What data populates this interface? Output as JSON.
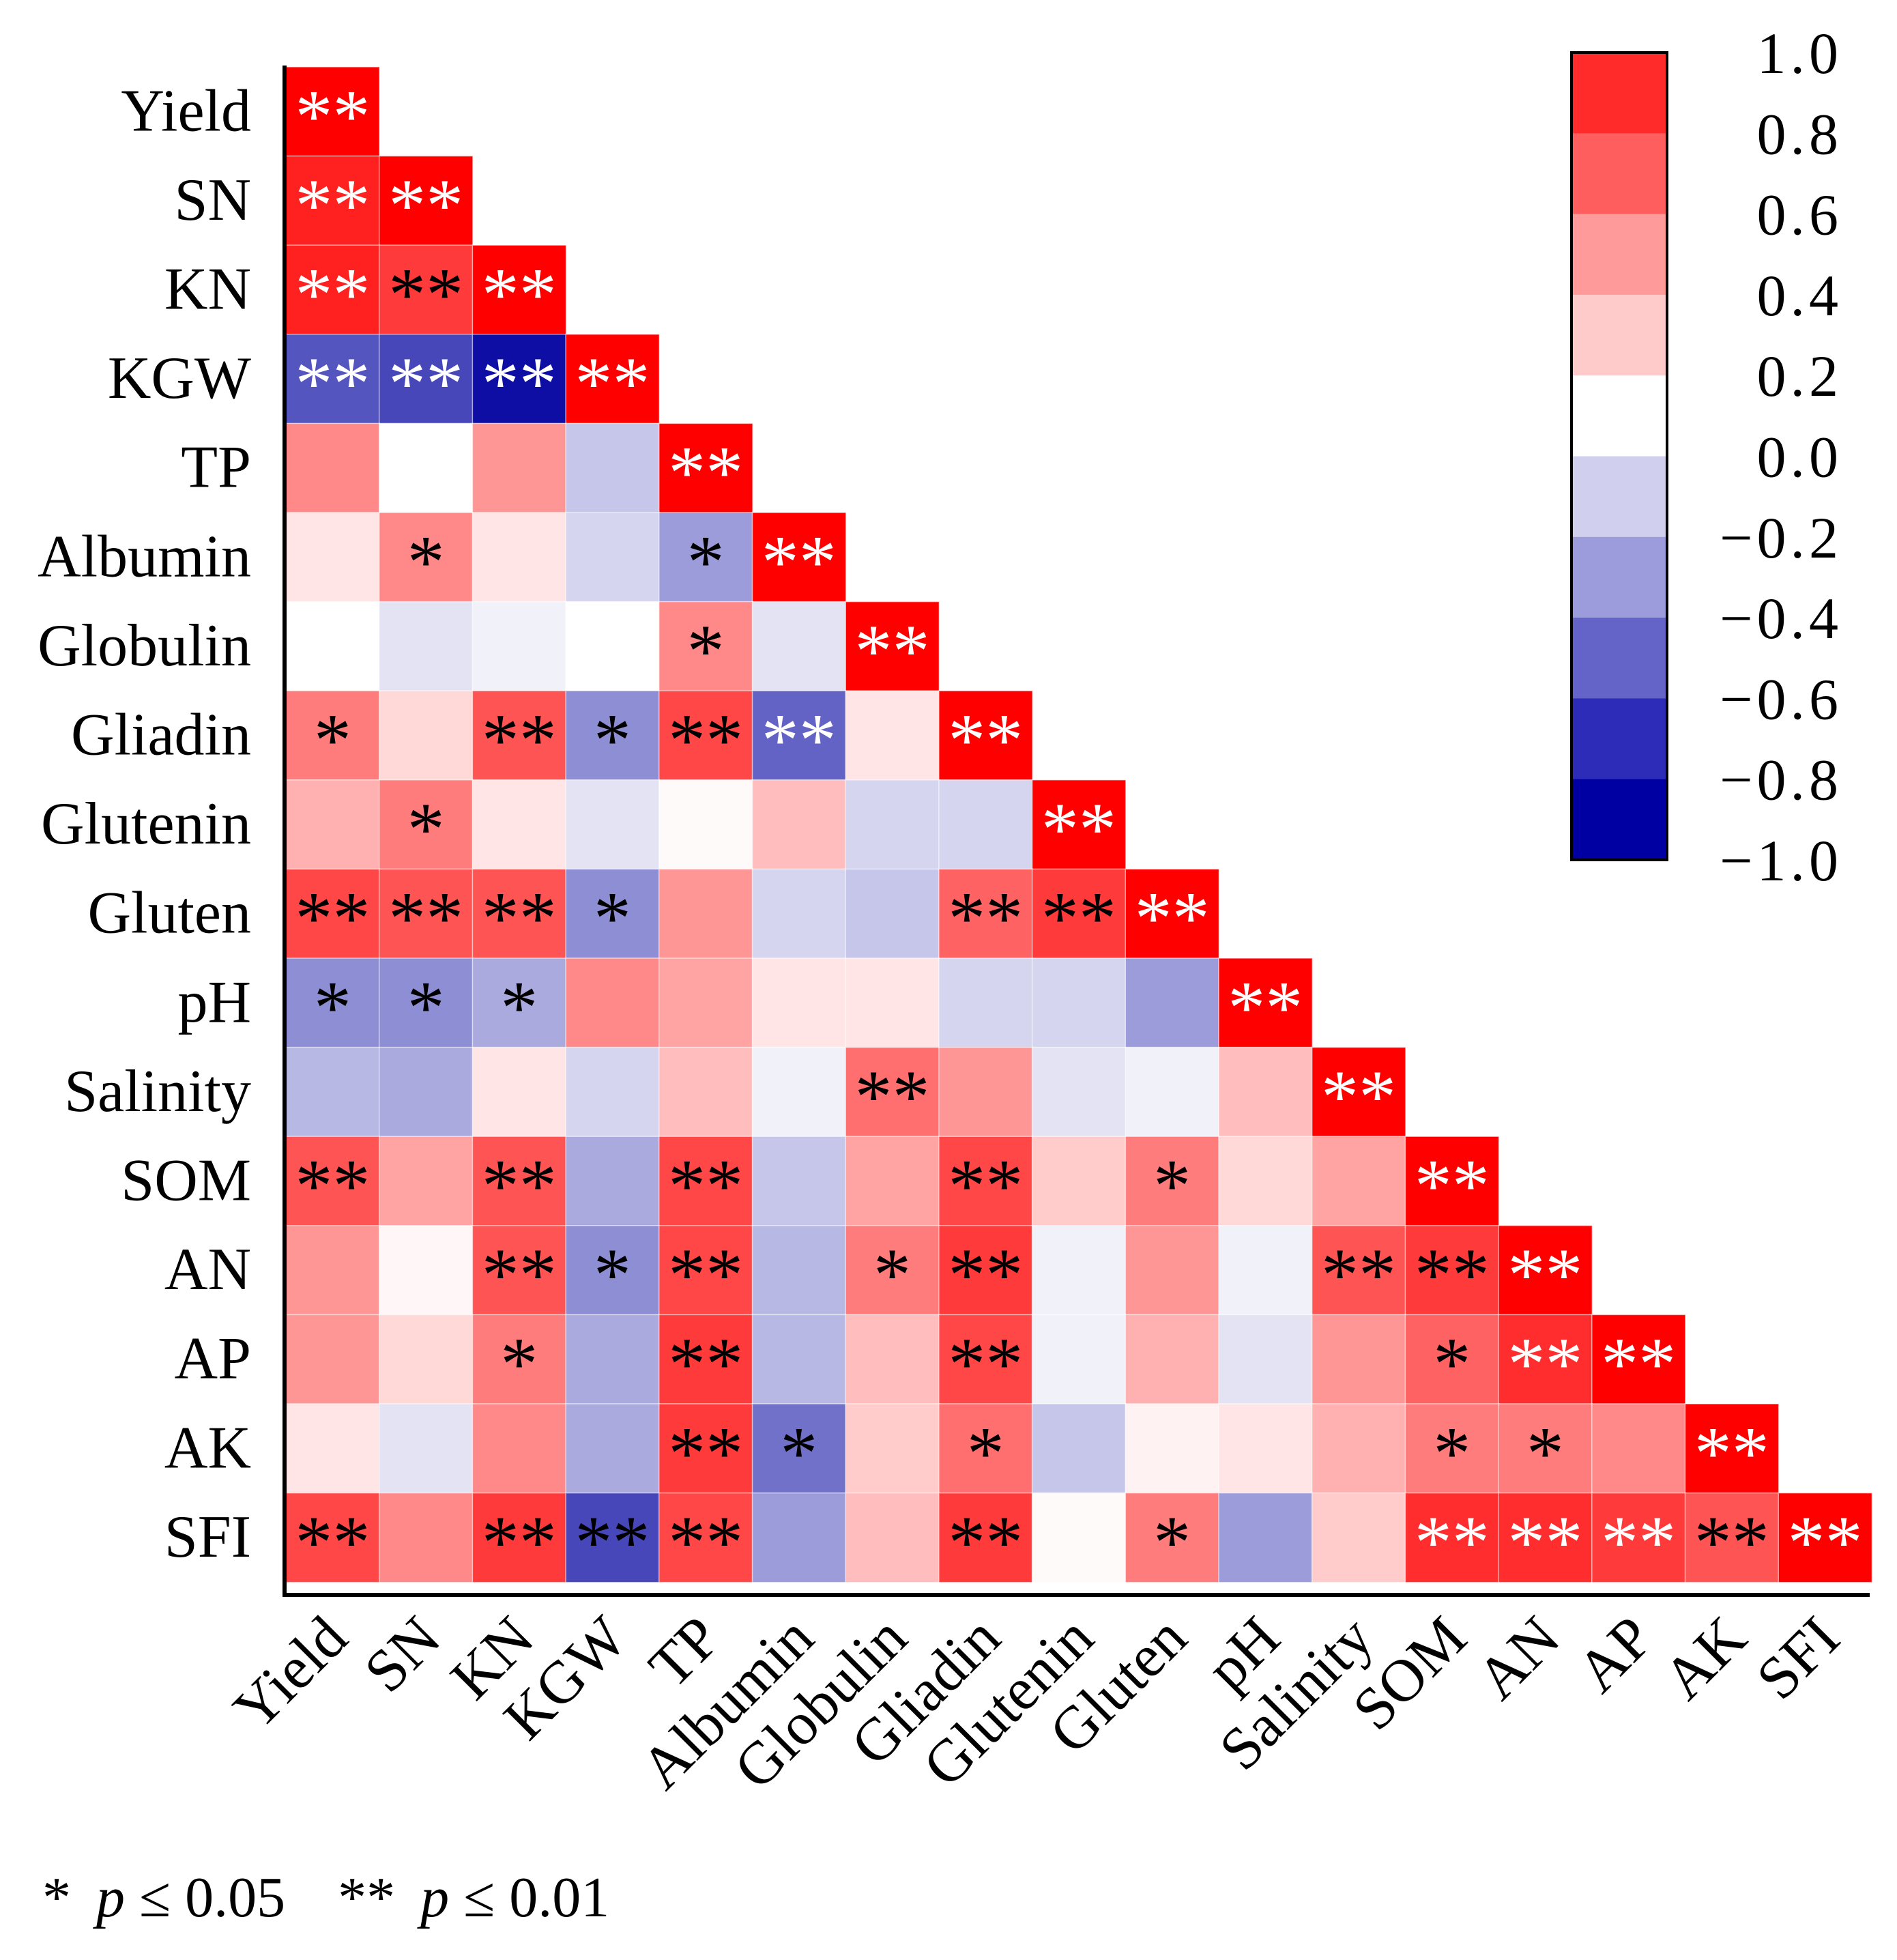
{
  "chart_data": {
    "type": "heatmap",
    "variables": [
      "Yield",
      "SN",
      "KN",
      "KGW",
      "TP",
      "Albumin",
      "Globulin",
      "Gliadin",
      "Glutenin",
      "Gluten",
      "pH",
      "Salinity",
      "SOM",
      "AN",
      "AP",
      "AK",
      "SFI"
    ],
    "matrix": [
      [
        1.0
      ],
      [
        0.9,
        1.0
      ],
      [
        0.9,
        0.75,
        1.0
      ],
      [
        -0.6,
        -0.65,
        -0.85,
        1.0
      ],
      [
        0.45,
        0.0,
        0.4,
        -0.2,
        1.0
      ],
      [
        0.1,
        0.45,
        0.1,
        -0.15,
        -0.35,
        1.0
      ],
      [
        0.0,
        -0.1,
        -0.05,
        0.0,
        0.45,
        -0.1,
        1.0
      ],
      [
        0.5,
        0.15,
        0.65,
        -0.4,
        0.7,
        -0.55,
        0.1,
        1.0
      ],
      [
        0.3,
        0.5,
        0.1,
        -0.1,
        0.02,
        0.25,
        -0.15,
        -0.15,
        1.0
      ],
      [
        0.7,
        0.65,
        0.65,
        -0.4,
        0.4,
        -0.15,
        -0.2,
        0.6,
        0.75,
        1.0
      ],
      [
        -0.4,
        -0.4,
        -0.3,
        0.45,
        0.35,
        0.1,
        0.1,
        -0.15,
        -0.15,
        -0.35,
        1.0
      ],
      [
        -0.25,
        -0.3,
        0.1,
        -0.15,
        0.25,
        -0.05,
        0.55,
        0.4,
        -0.1,
        -0.05,
        0.25,
        1.0
      ],
      [
        0.65,
        0.35,
        0.65,
        -0.3,
        0.7,
        -0.2,
        0.35,
        0.7,
        0.2,
        0.5,
        0.15,
        0.35,
        1.0
      ],
      [
        0.4,
        0.03,
        0.65,
        -0.4,
        0.7,
        -0.25,
        0.5,
        0.75,
        -0.05,
        0.4,
        -0.05,
        0.65,
        0.75,
        1.0
      ],
      [
        0.4,
        0.15,
        0.5,
        -0.3,
        0.75,
        -0.25,
        0.25,
        0.7,
        -0.05,
        0.3,
        -0.1,
        0.4,
        0.6,
        0.8,
        1.0
      ],
      [
        0.1,
        -0.1,
        0.45,
        -0.3,
        0.75,
        -0.5,
        0.2,
        0.55,
        -0.2,
        0.05,
        0.1,
        0.3,
        0.5,
        0.5,
        0.45,
        1.0
      ],
      [
        0.7,
        0.45,
        0.75,
        -0.65,
        0.7,
        -0.35,
        0.25,
        0.75,
        0.02,
        0.5,
        -0.35,
        0.2,
        0.8,
        0.8,
        0.75,
        0.65,
        1.0
      ]
    ],
    "significance": [
      [
        "**"
      ],
      [
        "**",
        "**"
      ],
      [
        "**",
        "**",
        "**"
      ],
      [
        "**",
        "**",
        "**",
        "**"
      ],
      [
        "",
        "",
        "",
        "",
        "**"
      ],
      [
        "",
        "*",
        "",
        "",
        "*",
        "**"
      ],
      [
        "",
        "",
        "",
        "",
        "*",
        "",
        "**"
      ],
      [
        "*",
        "",
        "**",
        "*",
        "**",
        "**",
        "",
        "**"
      ],
      [
        "",
        "*",
        "",
        "",
        "",
        "",
        "",
        "",
        "**"
      ],
      [
        "**",
        "**",
        "**",
        "*",
        "",
        "",
        "",
        "**",
        "**",
        "**"
      ],
      [
        "*",
        "*",
        "*",
        "",
        "",
        "",
        "",
        "",
        "",
        "",
        "**"
      ],
      [
        "",
        "",
        "",
        "",
        "",
        "",
        "**",
        "",
        "",
        "",
        "",
        "**"
      ],
      [
        "**",
        "",
        "**",
        "",
        "**",
        "",
        "",
        "**",
        "",
        "*",
        "",
        "",
        "**"
      ],
      [
        "",
        "",
        "**",
        "*",
        "**",
        "",
        "*",
        "**",
        "",
        "",
        "",
        "**",
        "**",
        "**"
      ],
      [
        "",
        "",
        "*",
        "",
        "**",
        "",
        "",
        "**",
        "",
        "",
        "",
        "",
        "*",
        "**",
        "**"
      ],
      [
        "",
        "",
        "",
        "",
        "**",
        "*",
        "",
        "*",
        "",
        "",
        "",
        "",
        "*",
        "*",
        "",
        "**"
      ],
      [
        "**",
        "",
        "**",
        "**",
        "**",
        "",
        "",
        "**",
        "",
        "*",
        "",
        "",
        "**",
        "**",
        "**",
        "**",
        "**"
      ]
    ],
    "star_colors": [
      [
        "w"
      ],
      [
        "w",
        "w"
      ],
      [
        "w",
        "k",
        "w"
      ],
      [
        "w",
        "w",
        "w",
        "w"
      ],
      [
        "",
        "",
        "",
        "",
        "w"
      ],
      [
        "",
        "k",
        "",
        "",
        "k",
        "w"
      ],
      [
        "",
        "",
        "",
        "",
        "k",
        "",
        "w"
      ],
      [
        "k",
        "",
        "k",
        "k",
        "k",
        "w",
        "",
        "w"
      ],
      [
        "",
        "k",
        "",
        "",
        "",
        "",
        "",
        "",
        "w"
      ],
      [
        "k",
        "k",
        "k",
        "k",
        "",
        "",
        "",
        "k",
        "k",
        "w"
      ],
      [
        "k",
        "k",
        "k",
        "",
        "",
        "",
        "",
        "",
        "",
        "",
        "w"
      ],
      [
        "",
        "",
        "",
        "",
        "",
        "",
        "k",
        "",
        "",
        "",
        "",
        "w"
      ],
      [
        "k",
        "",
        "k",
        "",
        "k",
        "",
        "",
        "k",
        "",
        "k",
        "",
        "",
        "w"
      ],
      [
        "",
        "",
        "k",
        "k",
        "k",
        "",
        "k",
        "k",
        "",
        "",
        "",
        "k",
        "k",
        "w"
      ],
      [
        "",
        "",
        "k",
        "",
        "k",
        "",
        "",
        "k",
        "",
        "",
        "",
        "",
        "k",
        "w",
        "w"
      ],
      [
        "",
        "",
        "",
        "",
        "k",
        "k",
        "",
        "k",
        "",
        "",
        "",
        "",
        "k",
        "k",
        "",
        "w"
      ],
      [
        "k",
        "",
        "k",
        "k",
        "k",
        "",
        "",
        "k",
        "",
        "k",
        "",
        "",
        "w",
        "w",
        "w",
        "k",
        "w"
      ]
    ],
    "colorbar": {
      "ticks": [
        "1.0",
        "0.8",
        "0.6",
        "0.4",
        "0.2",
        "0.0",
        "−0.2",
        "−0.4",
        "−0.6",
        "−0.8",
        "−1.0"
      ],
      "range": [
        -1,
        1
      ],
      "bins": 10,
      "colors": [
        "#FF2A2A",
        "#FF5E5E",
        "#FF9A9A",
        "#FFCACA",
        "#FFFFFF",
        "#D0D0EE",
        "#9C9CDC",
        "#6464C8",
        "#2C2CB8",
        "#0000A2"
      ]
    },
    "footnote": {
      "star1": "*",
      "p1_sym": "p",
      "p1_rest": " ≤ 0.05",
      "star2": "**",
      "p2_sym": "p",
      "p2_rest": " ≤ 0.01"
    }
  }
}
